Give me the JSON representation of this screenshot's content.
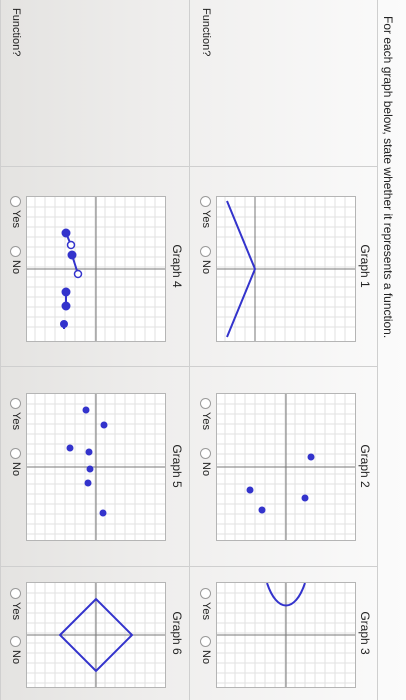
{
  "prompt": "For each graph below, state whether it represents a function.",
  "function_label": "Function?",
  "options": {
    "yes": "Yes",
    "no": "No"
  },
  "accent_color": "#3333cc",
  "graphs": [
    {
      "title": "Graph 1"
    },
    {
      "title": "Graph 2"
    },
    {
      "title": "Graph 3"
    },
    {
      "title": "Graph 4"
    },
    {
      "title": "Graph 5"
    },
    {
      "title": "Graph 6"
    }
  ]
}
